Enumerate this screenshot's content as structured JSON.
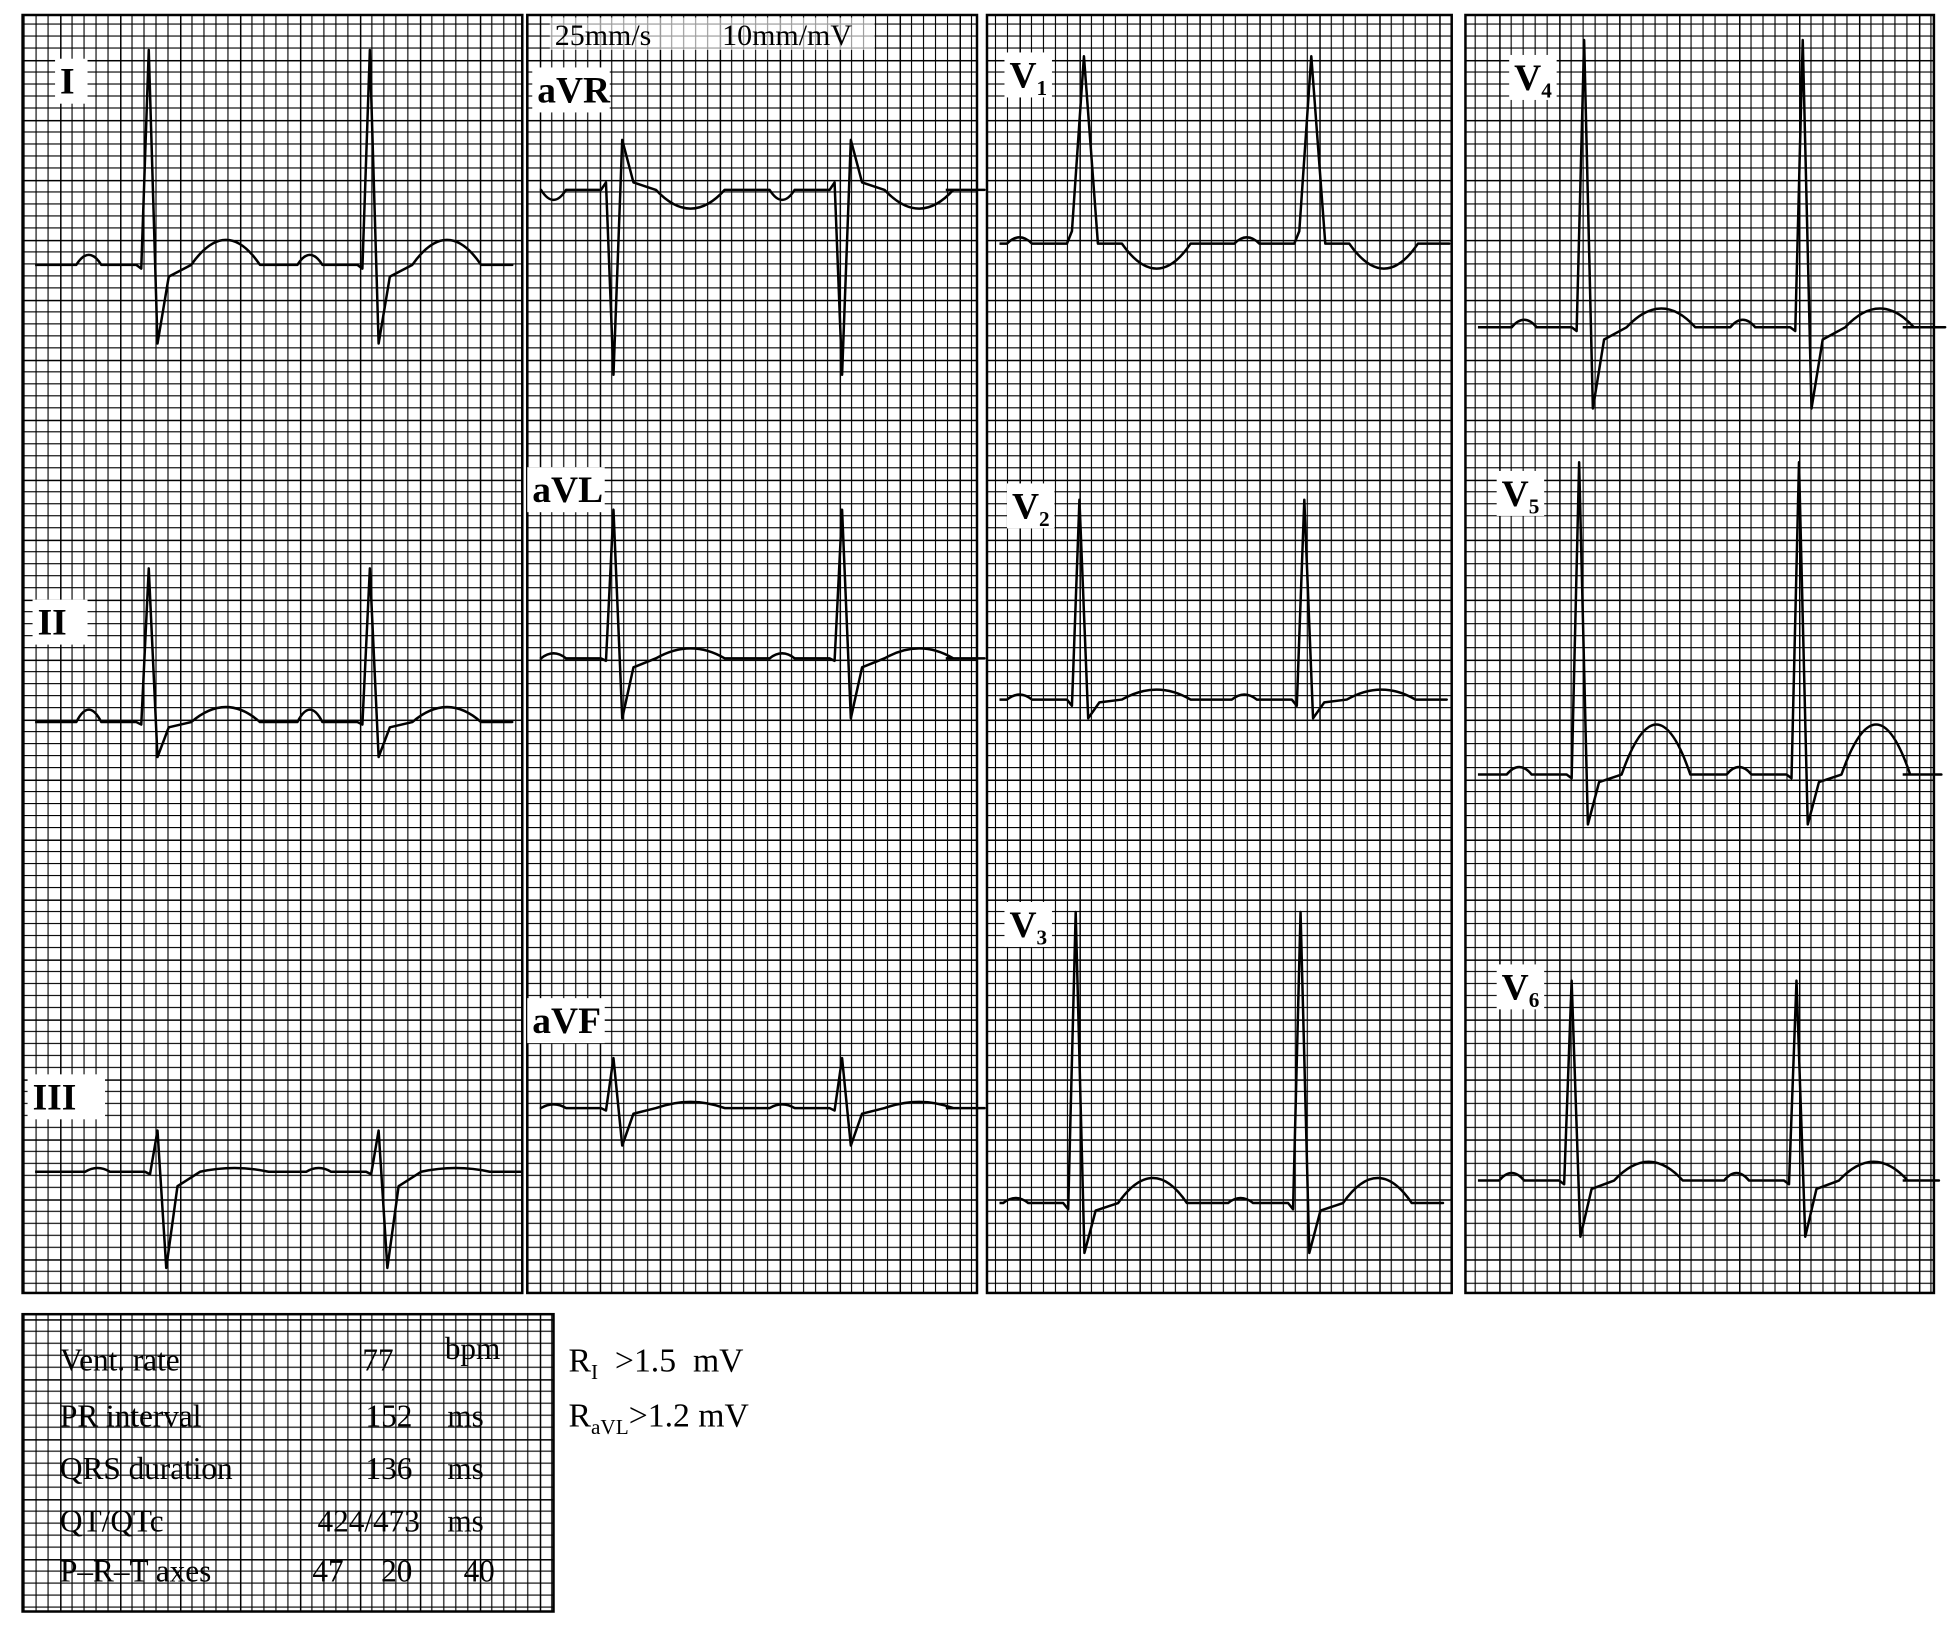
{
  "header": {
    "speed": "25mm/s",
    "gain": "10mm/mV"
  },
  "leads": [
    {
      "main": "I",
      "sub": ""
    },
    {
      "main": "II",
      "sub": ""
    },
    {
      "main": "III",
      "sub": ""
    },
    {
      "main": "aVR",
      "sub": ""
    },
    {
      "main": "aVL",
      "sub": ""
    },
    {
      "main": "aVF",
      "sub": ""
    },
    {
      "main": "V",
      "sub": "1"
    },
    {
      "main": "V",
      "sub": "2"
    },
    {
      "main": "V",
      "sub": "3"
    },
    {
      "main": "V",
      "sub": "4"
    },
    {
      "main": "V",
      "sub": "5"
    },
    {
      "main": "V",
      "sub": "6"
    }
  ],
  "measurements": [
    {
      "label": "Vent. rate",
      "value": "77",
      "unit": "bpm"
    },
    {
      "label": "PR interval",
      "value": "152",
      "unit": "ms"
    },
    {
      "label": "QRS duration",
      "value": "136",
      "unit": "ms"
    },
    {
      "label": "QT/QTc",
      "value": "424/473",
      "unit": "ms"
    }
  ],
  "axes": {
    "label": "P–R–T axes",
    "p": "47",
    "r": "20",
    "t": "40"
  },
  "notes": [
    {
      "main": "R",
      "sub": "I",
      "text": "  >1.5  mV"
    },
    {
      "main": "R",
      "sub": "aVL",
      "text": ">1.2 mV"
    }
  ]
}
